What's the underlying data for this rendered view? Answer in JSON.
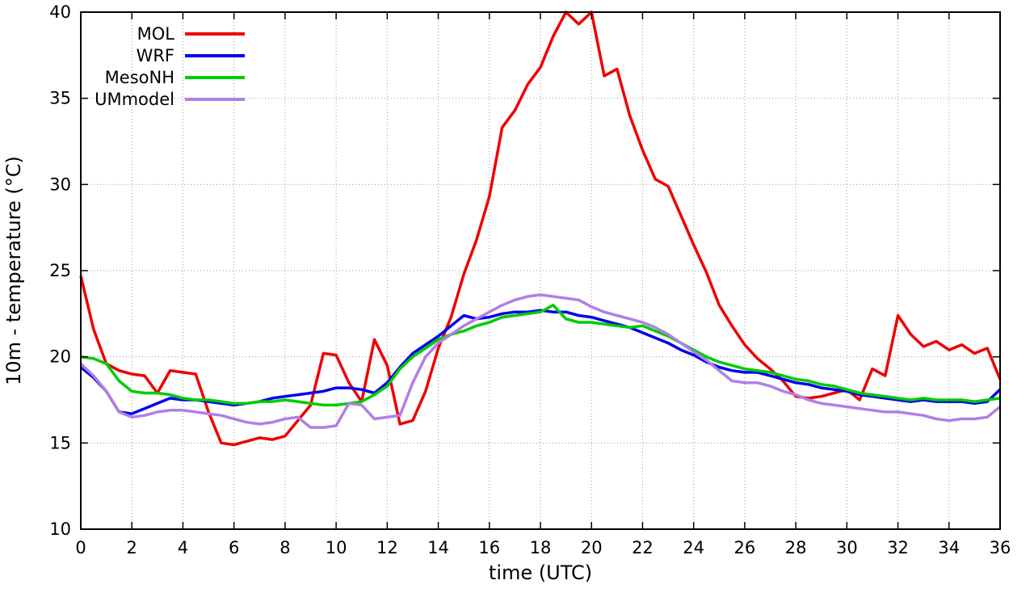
{
  "chart_data": {
    "type": "line",
    "title": "",
    "xlabel": "time (UTC)",
    "ylabel": "10m - temperature (°C)",
    "xlim": [
      0,
      36
    ],
    "ylim": [
      10,
      40
    ],
    "xticks": [
      0,
      2,
      4,
      6,
      8,
      10,
      12,
      14,
      16,
      18,
      20,
      22,
      24,
      26,
      28,
      30,
      32,
      34,
      36
    ],
    "yticks": [
      10,
      15,
      20,
      25,
      30,
      35,
      40
    ],
    "grid": true,
    "grid_style": "dotted",
    "legend_position": "top-left",
    "background": "#ffffff",
    "axis_color": "#000000",
    "grid_color": "#9a9a9a",
    "x": [
      0,
      0.5,
      1,
      1.5,
      2,
      2.5,
      3,
      3.5,
      4,
      4.5,
      5,
      5.5,
      6,
      6.5,
      7,
      7.5,
      8,
      8.5,
      9,
      9.5,
      10,
      10.5,
      11,
      11.5,
      12,
      12.5,
      13,
      13.5,
      14,
      14.5,
      15,
      15.5,
      16,
      16.5,
      17,
      17.5,
      18,
      18.5,
      19,
      19.5,
      20,
      20.5,
      21,
      21.5,
      22,
      22.5,
      23,
      23.5,
      24,
      24.5,
      25,
      25.5,
      26,
      26.5,
      27,
      27.5,
      28,
      28.5,
      29,
      29.5,
      30,
      30.5,
      31,
      31.5,
      32,
      32.5,
      33,
      33.5,
      34,
      34.5,
      35,
      35.5,
      36
    ],
    "series": [
      {
        "name": "MOL",
        "color": "#ee0000",
        "values": [
          24.7,
          21.6,
          19.6,
          19.2,
          19.0,
          18.9,
          17.9,
          19.2,
          19.1,
          19.0,
          16.8,
          15.0,
          14.9,
          15.1,
          15.3,
          15.2,
          15.4,
          16.3,
          17.2,
          20.2,
          20.1,
          18.5,
          17.4,
          21.0,
          19.5,
          16.1,
          16.3,
          18.0,
          20.5,
          22.3,
          24.8,
          26.8,
          29.3,
          33.3,
          34.3,
          35.8,
          36.8,
          38.6,
          40.0,
          39.3,
          40.0,
          36.3,
          36.7,
          34.0,
          32.0,
          30.3,
          29.9,
          28.2,
          26.5,
          24.9,
          23.0,
          21.8,
          20.7,
          19.9,
          19.3,
          18.6,
          17.7,
          17.6,
          17.7,
          17.9,
          18.1,
          17.5,
          19.3,
          18.9,
          22.4,
          21.3,
          20.6,
          20.9,
          20.4,
          20.7,
          20.2,
          20.5,
          18.7
        ]
      },
      {
        "name": "WRF",
        "color": "#0000ee",
        "values": [
          19.4,
          18.8,
          18.0,
          16.8,
          16.7,
          17.0,
          17.3,
          17.6,
          17.5,
          17.5,
          17.4,
          17.3,
          17.2,
          17.3,
          17.4,
          17.6,
          17.7,
          17.8,
          17.9,
          18.0,
          18.2,
          18.2,
          18.1,
          17.9,
          18.5,
          19.4,
          20.2,
          20.7,
          21.2,
          21.8,
          22.4,
          22.2,
          22.3,
          22.5,
          22.6,
          22.6,
          22.7,
          22.6,
          22.6,
          22.4,
          22.3,
          22.1,
          21.9,
          21.7,
          21.4,
          21.1,
          20.8,
          20.4,
          20.1,
          19.7,
          19.4,
          19.2,
          19.1,
          19.1,
          18.9,
          18.7,
          18.5,
          18.4,
          18.2,
          18.1,
          18.0,
          17.8,
          17.7,
          17.6,
          17.5,
          17.4,
          17.5,
          17.4,
          17.4,
          17.4,
          17.3,
          17.4,
          18.1
        ]
      },
      {
        "name": "MesoNH",
        "color": "#00cc00",
        "values": [
          20.0,
          19.9,
          19.6,
          18.6,
          18.0,
          17.9,
          17.9,
          17.8,
          17.6,
          17.5,
          17.5,
          17.4,
          17.3,
          17.3,
          17.4,
          17.4,
          17.5,
          17.4,
          17.3,
          17.2,
          17.2,
          17.3,
          17.4,
          17.8,
          18.3,
          19.3,
          20.0,
          20.5,
          21.0,
          21.3,
          21.5,
          21.8,
          22.0,
          22.3,
          22.4,
          22.5,
          22.6,
          23.0,
          22.2,
          22.0,
          22.0,
          21.9,
          21.8,
          21.7,
          21.8,
          21.5,
          21.2,
          20.8,
          20.4,
          20.0,
          19.7,
          19.5,
          19.3,
          19.2,
          19.1,
          18.9,
          18.7,
          18.6,
          18.4,
          18.3,
          18.1,
          17.9,
          17.8,
          17.7,
          17.6,
          17.5,
          17.6,
          17.5,
          17.5,
          17.5,
          17.4,
          17.5,
          17.6
        ]
      },
      {
        "name": "UMmodel",
        "color": "#b27ee6",
        "values": [
          19.6,
          18.9,
          18.0,
          16.8,
          16.5,
          16.6,
          16.8,
          16.9,
          16.9,
          16.8,
          16.7,
          16.6,
          16.4,
          16.2,
          16.1,
          16.2,
          16.4,
          16.5,
          15.9,
          15.9,
          16.0,
          17.3,
          17.2,
          16.4,
          16.5,
          16.6,
          18.5,
          20.0,
          20.8,
          21.3,
          21.8,
          22.2,
          22.6,
          23.0,
          23.3,
          23.5,
          23.6,
          23.5,
          23.4,
          23.3,
          22.9,
          22.6,
          22.4,
          22.2,
          22.0,
          21.7,
          21.3,
          20.8,
          20.3,
          19.8,
          19.2,
          18.6,
          18.5,
          18.5,
          18.3,
          18.0,
          17.8,
          17.5,
          17.3,
          17.2,
          17.1,
          17.0,
          16.9,
          16.8,
          16.8,
          16.7,
          16.6,
          16.4,
          16.3,
          16.4,
          16.4,
          16.5,
          17.1
        ]
      }
    ]
  }
}
